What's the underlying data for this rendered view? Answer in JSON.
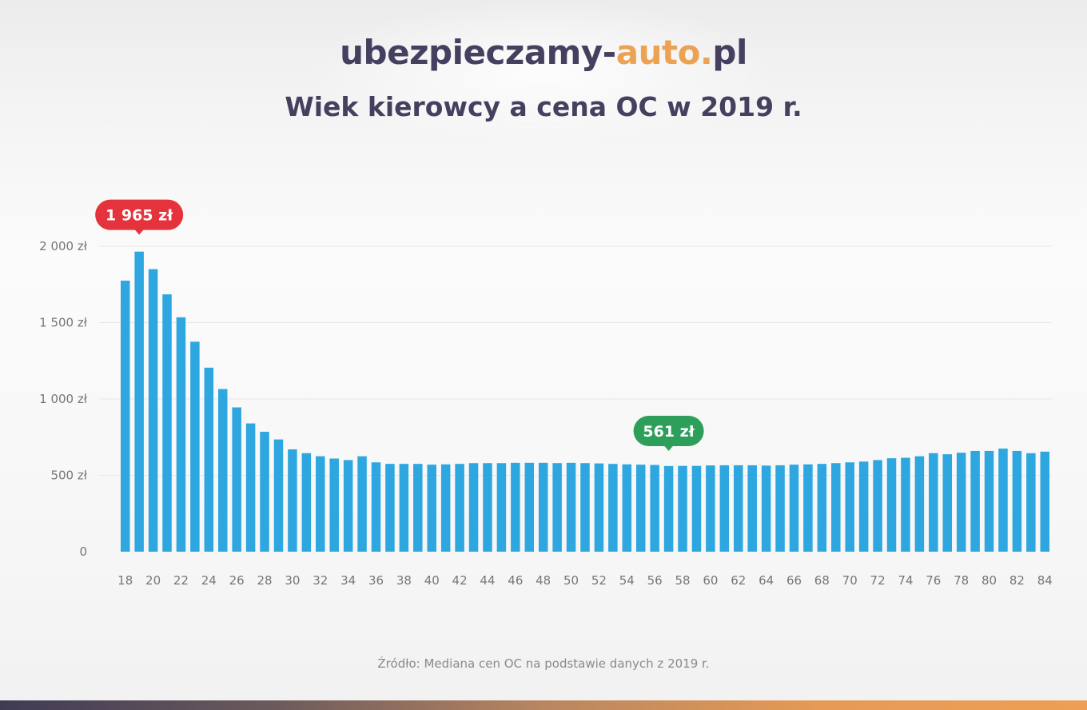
{
  "header": {
    "brand_prefix": "ubezpieczamy-",
    "brand_accent": "auto.",
    "brand_suffix": "pl",
    "subtitle": "Wiek kierowcy a cena OC w 2019 r."
  },
  "source_note": "Źródło: Mediana cen OC na podstawie danych z 2019 r.",
  "colors": {
    "bar": "#2ea7e0",
    "max_callout": "#e4333c",
    "min_callout": "#2e9e5b",
    "title": "#45405f",
    "accent": "#eba253",
    "tick_text": "#777777",
    "grid": "#e6e6e6"
  },
  "chart_data": {
    "type": "bar",
    "title": "Wiek kierowcy a cena OC w 2019 r.",
    "xlabel": "",
    "ylabel": "",
    "ylim": [
      0,
      2000
    ],
    "grid": true,
    "y_ticks": [
      {
        "value": 0,
        "label": "0"
      },
      {
        "value": 500,
        "label": "500 zł"
      },
      {
        "value": 1000,
        "label": "1 000 zł"
      },
      {
        "value": 1500,
        "label": "1 500 zł"
      },
      {
        "value": 2000,
        "label": "2 000 zł"
      }
    ],
    "categories": [
      18,
      19,
      20,
      21,
      22,
      23,
      24,
      25,
      26,
      27,
      28,
      29,
      30,
      31,
      32,
      33,
      34,
      35,
      36,
      37,
      38,
      39,
      40,
      41,
      42,
      43,
      44,
      45,
      46,
      47,
      48,
      49,
      50,
      51,
      52,
      53,
      54,
      55,
      56,
      57,
      58,
      59,
      60,
      61,
      62,
      63,
      64,
      65,
      66,
      67,
      68,
      69,
      70,
      71,
      72,
      73,
      74,
      75,
      76,
      77,
      78,
      79,
      80,
      81,
      82,
      83,
      84
    ],
    "x_tick_labels": [
      "18",
      "20",
      "22",
      "24",
      "26",
      "28",
      "30",
      "32",
      "34",
      "36",
      "38",
      "40",
      "42",
      "44",
      "46",
      "48",
      "50",
      "52",
      "54",
      "56",
      "58",
      "60",
      "62",
      "64",
      "66",
      "68",
      "70",
      "72",
      "74",
      "76",
      "78",
      "80",
      "82",
      "84"
    ],
    "values": [
      1775,
      1965,
      1850,
      1685,
      1535,
      1375,
      1205,
      1065,
      945,
      840,
      785,
      735,
      670,
      645,
      625,
      610,
      600,
      625,
      585,
      575,
      575,
      575,
      570,
      572,
      575,
      580,
      580,
      580,
      582,
      582,
      582,
      580,
      582,
      580,
      578,
      575,
      572,
      570,
      568,
      561,
      562,
      562,
      565,
      566,
      566,
      566,
      564,
      566,
      570,
      572,
      575,
      580,
      585,
      590,
      600,
      612,
      615,
      625,
      645,
      638,
      648,
      660,
      660,
      675,
      660,
      645,
      655
    ],
    "annotations": [
      {
        "label": "1 965 zł",
        "category": 19,
        "value": 1965,
        "kind": "max"
      },
      {
        "label": "561 zł",
        "category": 57,
        "value": 561,
        "kind": "min"
      }
    ]
  }
}
